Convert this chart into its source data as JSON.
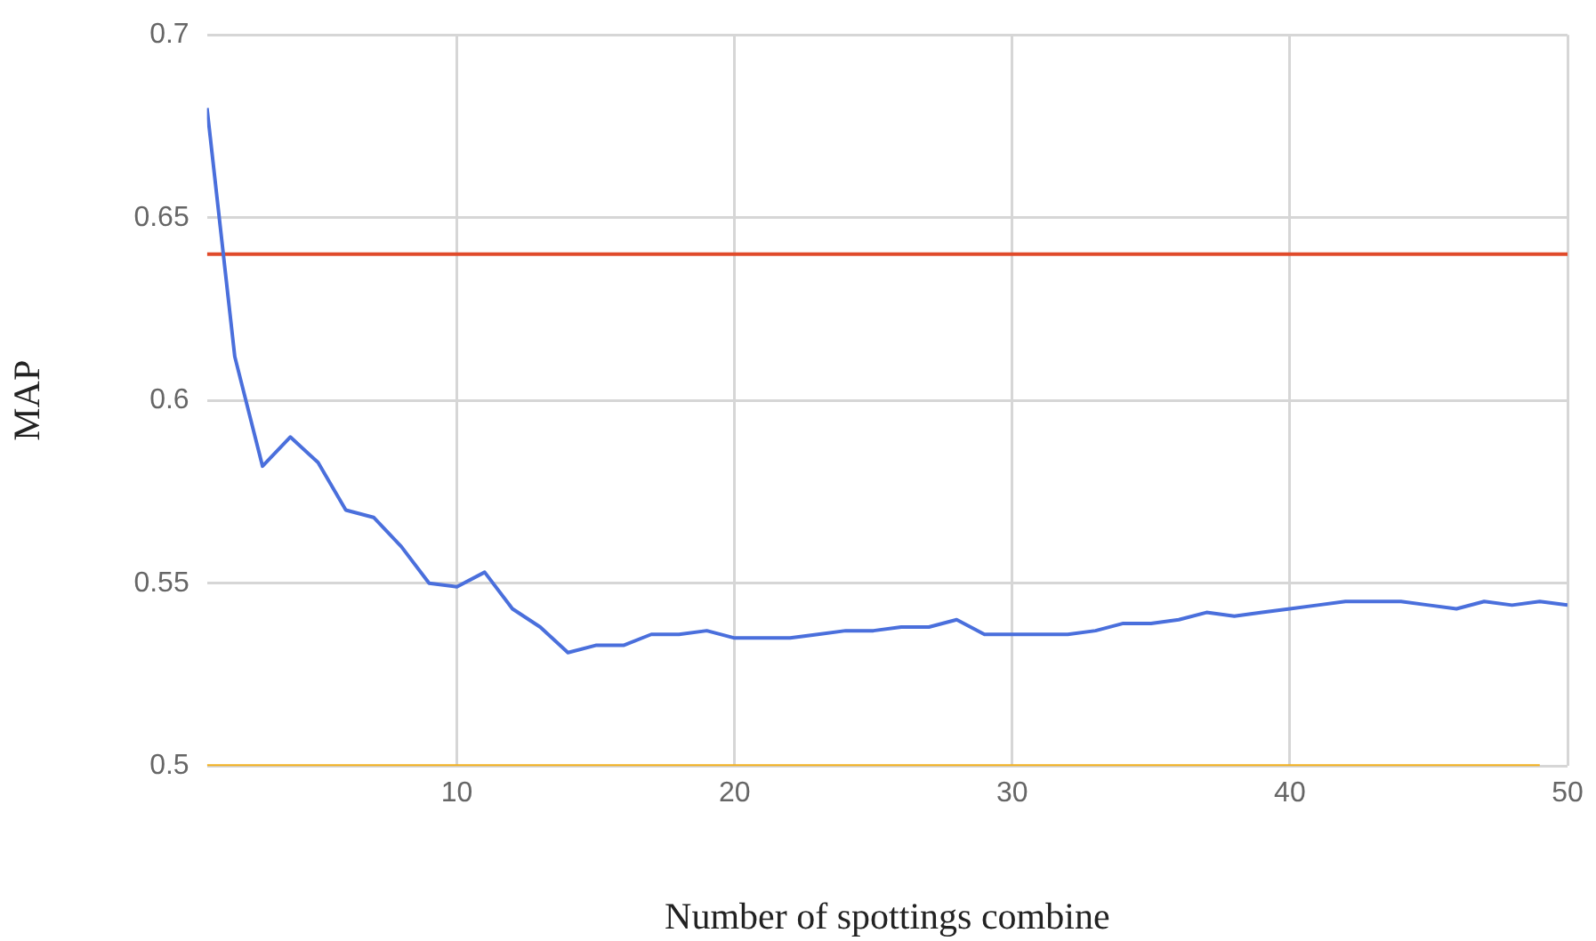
{
  "chart_data": {
    "type": "line",
    "xlabel": "Number of spottings combine",
    "ylabel": "MAP",
    "x": [
      1,
      2,
      3,
      4,
      5,
      6,
      7,
      8,
      9,
      10,
      11,
      12,
      13,
      14,
      15,
      16,
      17,
      18,
      19,
      20,
      21,
      22,
      23,
      24,
      25,
      26,
      27,
      28,
      29,
      30,
      31,
      32,
      33,
      34,
      35,
      36,
      37,
      38,
      39,
      40,
      41,
      42,
      43,
      44,
      45,
      46,
      47,
      48,
      49,
      50
    ],
    "series": [
      {
        "color": "#4a6fdc",
        "values": [
          0.68,
          0.612,
          0.582,
          0.59,
          0.583,
          0.57,
          0.568,
          0.56,
          0.55,
          0.549,
          0.553,
          0.543,
          0.538,
          0.531,
          0.533,
          0.533,
          0.536,
          0.536,
          0.537,
          0.535,
          0.535,
          0.535,
          0.536,
          0.537,
          0.537,
          0.538,
          0.538,
          0.54,
          0.536,
          0.536,
          0.536,
          0.536,
          0.537,
          0.539,
          0.539,
          0.54,
          0.542,
          0.541,
          0.542,
          0.543,
          0.544,
          0.545,
          0.545,
          0.545,
          0.544,
          0.543,
          0.545,
          0.544,
          0.545,
          0.544
        ]
      },
      {
        "color": "#e04a2a",
        "values": [
          0.64,
          0.64,
          0.64,
          0.64,
          0.64,
          0.64,
          0.64,
          0.64,
          0.64,
          0.64,
          0.64,
          0.64,
          0.64,
          0.64,
          0.64,
          0.64,
          0.64,
          0.64,
          0.64,
          0.64,
          0.64,
          0.64,
          0.64,
          0.64,
          0.64,
          0.64,
          0.64,
          0.64,
          0.64,
          0.64,
          0.64,
          0.64,
          0.64,
          0.64,
          0.64,
          0.64,
          0.64,
          0.64,
          0.64,
          0.64,
          0.64,
          0.64,
          0.64,
          0.64,
          0.64,
          0.64,
          0.64,
          0.64,
          0.64,
          0.64
        ]
      },
      {
        "color": "#f2b01e",
        "values": [
          0.5,
          0.5,
          0.5,
          0.5,
          0.5,
          0.5,
          0.5,
          0.5,
          0.5,
          0.5,
          0.5,
          0.5,
          0.5,
          0.5,
          0.5,
          0.5,
          0.5,
          0.5,
          0.5,
          0.5,
          0.5,
          0.5,
          0.5,
          0.5,
          0.5,
          0.5,
          0.5,
          0.5,
          0.5,
          0.5,
          0.5,
          0.5,
          0.5,
          0.5,
          0.5,
          0.5,
          0.5,
          0.5,
          0.5,
          0.5,
          0.5,
          0.5,
          0.5,
          0.5,
          0.5,
          0.5,
          0.5,
          0.5,
          0.5,
          null
        ]
      }
    ],
    "xlim": [
      1,
      50
    ],
    "xticks": [
      10,
      20,
      30,
      40,
      50
    ],
    "ylim": [
      0.5,
      0.7
    ],
    "yticks": [
      0.5,
      0.55,
      0.6,
      0.65,
      0.7
    ],
    "grid": true,
    "marker": "none",
    "line_style": "solid"
  }
}
